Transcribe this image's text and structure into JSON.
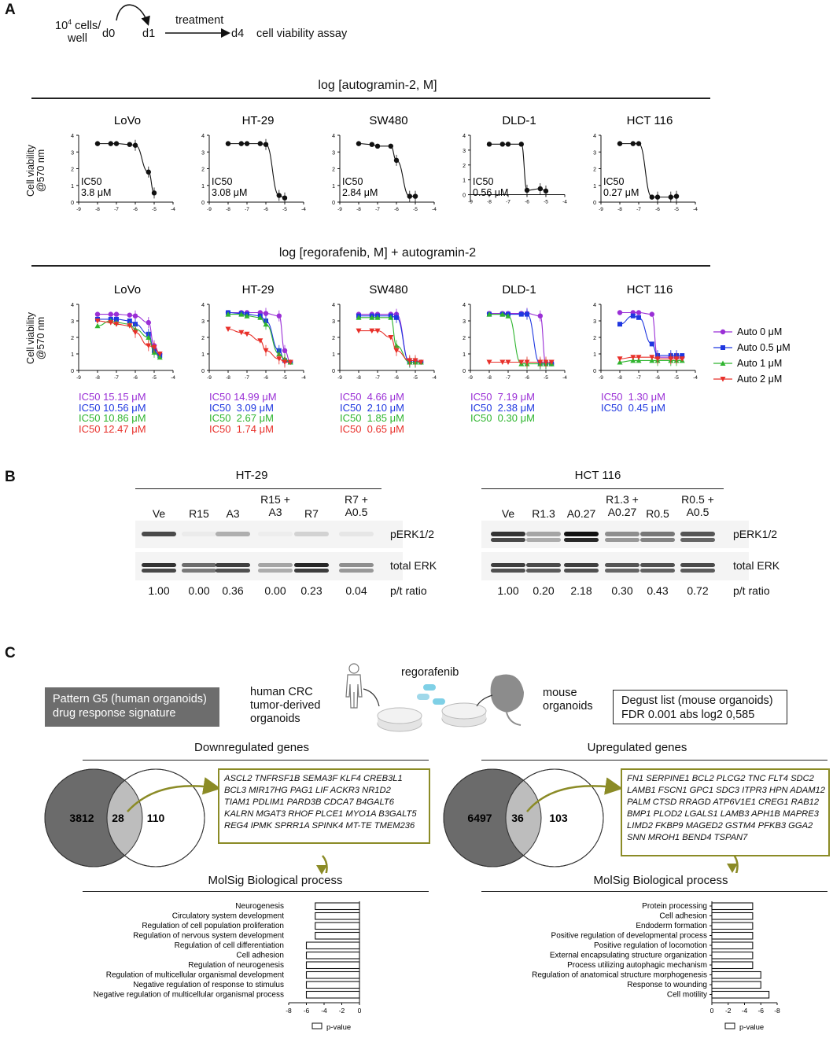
{
  "panels": {
    "a": "A",
    "b": "B",
    "c": "C"
  },
  "schematic": {
    "cells_line1": "10",
    "cells_sup": "4",
    "cells_line1b": " cells/",
    "cells_line2": "well",
    "d0": "d0",
    "d1": "d1",
    "treatment": "treatment",
    "d4": "d4",
    "assay": "cell viability assay"
  },
  "section_titles": {
    "top": "log [autogramin-2, M]",
    "bottom": "log [regorafenib, M] + autogramin-2"
  },
  "ylabel_line1": "Cell viability",
  "ylabel_line2": "@570 nm",
  "legend": [
    {
      "name": "Auto 0 μM",
      "color": "#9a2fd6",
      "marker": "circle"
    },
    {
      "name": "Auto 0.5 μM",
      "color": "#1f37e0",
      "marker": "square"
    },
    {
      "name": "Auto 1 μM",
      "color": "#2fb52f",
      "marker": "triangle-up"
    },
    {
      "name": "Auto 2 μM",
      "color": "#e8302a",
      "marker": "triangle-down"
    }
  ],
  "chart_data": [
    {
      "type": "line",
      "title": "LoVo",
      "group": "autogramin-2",
      "xlim": [
        -9,
        -4
      ],
      "ylim": [
        0,
        4
      ],
      "series": [
        {
          "x": [
            -8,
            -7.3,
            -7,
            -6.3,
            -6,
            -5.3,
            -5
          ],
          "values": [
            3.5,
            3.5,
            3.5,
            3.45,
            3.4,
            1.8,
            0.55
          ]
        }
      ],
      "ic50": [
        "IC50",
        "3.8 μM"
      ]
    },
    {
      "type": "line",
      "title": "HT-29",
      "group": "autogramin-2",
      "xlim": [
        -9,
        -4
      ],
      "ylim": [
        0,
        4
      ],
      "series": [
        {
          "x": [
            -8,
            -7.3,
            -7,
            -6.3,
            -6,
            -5.3,
            -5
          ],
          "values": [
            3.5,
            3.5,
            3.5,
            3.5,
            3.45,
            0.4,
            0.25
          ]
        }
      ],
      "ic50": [
        "IC50",
        "3.08 μM"
      ]
    },
    {
      "type": "line",
      "title": "SW480",
      "group": "autogramin-2",
      "xlim": [
        -9,
        -4
      ],
      "ylim": [
        0,
        4
      ],
      "series": [
        {
          "x": [
            -8,
            -7.3,
            -7,
            -6.3,
            -6,
            -5.3,
            -5
          ],
          "values": [
            3.5,
            3.45,
            3.35,
            3.35,
            2.5,
            0.35,
            0.35
          ]
        }
      ],
      "ic50": [
        "IC50",
        "2.84 μM"
      ]
    },
    {
      "type": "line",
      "title": "DLD-1",
      "group": "autogramin-2",
      "xlim": [
        -9,
        -4
      ],
      "ylim": [
        -0.5,
        4
      ],
      "series": [
        {
          "x": [
            -8,
            -7.3,
            -7,
            -6.3,
            -6,
            -5.3,
            -5
          ],
          "values": [
            3.4,
            3.4,
            3.4,
            3.4,
            0.3,
            0.4,
            0.25
          ]
        }
      ],
      "ic50": [
        "IC50",
        "0.56 μM"
      ]
    },
    {
      "type": "line",
      "title": "HCT 116",
      "group": "autogramin-2",
      "xlim": [
        -9,
        -4
      ],
      "ylim": [
        0,
        4
      ],
      "series": [
        {
          "x": [
            -8,
            -7.3,
            -7,
            -6.3,
            -6,
            -5.3,
            -5
          ],
          "values": [
            3.5,
            3.5,
            3.5,
            0.3,
            0.3,
            0.3,
            0.35
          ]
        }
      ],
      "ic50": [
        "IC50",
        "0.27 μM"
      ]
    },
    {
      "type": "line",
      "title": "LoVo",
      "group": "regorafenib",
      "xlim": [
        -9,
        -4
      ],
      "ylim": [
        0,
        4
      ],
      "x": [
        -8,
        -7.3,
        -7,
        -6.3,
        -6,
        -5.3,
        -5,
        -4.7
      ],
      "series": [
        {
          "name": "Auto 0 μM",
          "values": [
            3.4,
            3.4,
            3.4,
            3.35,
            3.3,
            2.9,
            1.5,
            1.0
          ]
        },
        {
          "name": "Auto 0.5 μM",
          "values": [
            3.1,
            3.1,
            3.1,
            3.0,
            2.8,
            2.2,
            1.2,
            0.9
          ]
        },
        {
          "name": "Auto 1 μM",
          "values": [
            2.7,
            3.0,
            2.9,
            2.8,
            2.5,
            2.0,
            1.1,
            0.8
          ]
        },
        {
          "name": "Auto 2 μM",
          "values": [
            3.0,
            2.9,
            2.8,
            2.7,
            2.3,
            1.5,
            1.4,
            1.0
          ]
        }
      ],
      "ic50": [
        [
          "IC50 15.15 μM",
          "#9a2fd6"
        ],
        [
          "IC50 10.56 μM",
          "#1f37e0"
        ],
        [
          "IC50 10.86 μM",
          "#2fb52f"
        ],
        [
          "IC50 12.47 μM",
          "#e8302a"
        ]
      ]
    },
    {
      "type": "line",
      "title": "HT-29",
      "group": "regorafenib",
      "xlim": [
        -9,
        -4
      ],
      "ylim": [
        0,
        4
      ],
      "x": [
        -8,
        -7.3,
        -7,
        -6.3,
        -6,
        -5.3,
        -5,
        -4.7
      ],
      "series": [
        {
          "name": "Auto 0 μM",
          "values": [
            3.5,
            3.5,
            3.5,
            3.5,
            3.45,
            3.3,
            1.2,
            0.5
          ]
        },
        {
          "name": "Auto 0.5 μM",
          "values": [
            3.5,
            3.45,
            3.4,
            3.3,
            3.0,
            1.2,
            0.6,
            0.5
          ]
        },
        {
          "name": "Auto 1 μM",
          "values": [
            3.4,
            3.4,
            3.3,
            3.2,
            2.8,
            1.0,
            0.7,
            0.5
          ]
        },
        {
          "name": "Auto 2 μM",
          "values": [
            2.5,
            2.3,
            2.2,
            1.8,
            1.2,
            0.7,
            0.5,
            0.5
          ]
        }
      ],
      "ic50": [
        [
          "IC50 14.99 μM",
          "#9a2fd6"
        ],
        [
          "IC50  3.09 μM",
          "#1f37e0"
        ],
        [
          "IC50  2.67 μM",
          "#2fb52f"
        ],
        [
          "IC50  1.74 μM",
          "#e8302a"
        ]
      ]
    },
    {
      "type": "line",
      "title": "SW480",
      "group": "regorafenib",
      "xlim": [
        -9,
        -4
      ],
      "ylim": [
        0,
        4
      ],
      "x": [
        -8,
        -7.3,
        -7,
        -6.3,
        -6,
        -5.3,
        -5,
        -4.7
      ],
      "series": [
        {
          "name": "Auto 0 μM",
          "values": [
            3.4,
            3.4,
            3.4,
            3.4,
            3.4,
            0.5,
            0.5,
            0.5
          ]
        },
        {
          "name": "Auto 0.5 μM",
          "values": [
            3.3,
            3.3,
            3.3,
            3.3,
            3.2,
            0.5,
            0.5,
            0.5
          ]
        },
        {
          "name": "Auto 1 μM",
          "values": [
            3.2,
            3.2,
            3.2,
            3.2,
            1.5,
            0.5,
            0.5,
            0.5
          ]
        },
        {
          "name": "Auto 2 μM",
          "values": [
            2.4,
            2.4,
            2.4,
            2.0,
            1.2,
            0.6,
            0.6,
            0.5
          ]
        }
      ],
      "ic50": [
        [
          "IC50  4.66 μM",
          "#9a2fd6"
        ],
        [
          "IC50  2.10 μM",
          "#1f37e0"
        ],
        [
          "IC50  1.85 μM",
          "#2fb52f"
        ],
        [
          "IC50  0.65 μM",
          "#e8302a"
        ]
      ]
    },
    {
      "type": "line",
      "title": "DLD-1",
      "group": "regorafenib",
      "xlim": [
        -9,
        -4
      ],
      "ylim": [
        0,
        4
      ],
      "x": [
        -8,
        -7.3,
        -7,
        -6.3,
        -6,
        -5.3,
        -5,
        -4.7
      ],
      "series": [
        {
          "name": "Auto 0 μM",
          "values": [
            3.45,
            3.45,
            3.45,
            3.45,
            3.45,
            3.3,
            0.4,
            0.4
          ]
        },
        {
          "name": "Auto 0.5 μM",
          "values": [
            3.4,
            3.4,
            3.4,
            3.4,
            3.4,
            0.4,
            0.4,
            0.4
          ]
        },
        {
          "name": "Auto 1 μM",
          "values": [
            3.4,
            3.4,
            3.3,
            0.4,
            0.4,
            0.4,
            0.4,
            0.4
          ]
        },
        {
          "name": "Auto 2 μM",
          "values": [
            0.5,
            0.5,
            0.5,
            0.5,
            0.5,
            0.5,
            0.5,
            0.5
          ]
        }
      ],
      "ic50": [
        [
          "IC50  7.19 μM",
          "#9a2fd6"
        ],
        [
          "IC50  2.38 μM",
          "#1f37e0"
        ],
        [
          "IC50  0.30 μM",
          "#2fb52f"
        ]
      ]
    },
    {
      "type": "line",
      "title": "HCT 116",
      "group": "regorafenib",
      "xlim": [
        -9,
        -4
      ],
      "ylim": [
        0,
        4
      ],
      "x": [
        -8,
        -7.3,
        -7,
        -6.3,
        -6,
        -5.3,
        -5,
        -4.7
      ],
      "series": [
        {
          "name": "Auto 0 μM",
          "values": [
            3.5,
            3.5,
            3.5,
            3.4,
            0.8,
            0.8,
            0.8,
            0.8
          ]
        },
        {
          "name": "Auto 0.5 μM",
          "values": [
            2.8,
            3.3,
            3.2,
            1.6,
            0.9,
            0.9,
            0.9,
            0.9
          ]
        },
        {
          "name": "Auto 1 μM",
          "values": [
            0.5,
            0.6,
            0.6,
            0.6,
            0.6,
            0.6,
            0.6,
            0.6
          ]
        },
        {
          "name": "Auto 2 μM",
          "values": [
            0.7,
            0.8,
            0.8,
            0.8,
            0.7,
            0.7,
            0.7,
            0.7
          ]
        }
      ],
      "ic50": [
        [
          "IC50  1.30 μM",
          "#9a2fd6"
        ],
        [
          "IC50  0.45 μM",
          "#1f37e0"
        ]
      ]
    },
    {
      "type": "bar",
      "orientation": "horizontal",
      "title": "MolSig Biological process (Downregulated)",
      "categories": [
        "Neurogenesis",
        "Circulatory system development",
        "Regulation of cell population proliferation",
        "Regulation of nervous system development",
        "Regulation of cell differentiation",
        "Cell adhesion",
        "Regulation of neurogenesis",
        "Regulation of multicellular organismal development",
        "Negative regulation of response to stimulus",
        "Negative regulation of multicellular organismal process"
      ],
      "values": [
        -5,
        -5,
        -5,
        -5,
        -6,
        -6,
        -6,
        -6,
        -6,
        -6
      ],
      "xlim": [
        -8,
        0
      ],
      "legend": "p-value"
    },
    {
      "type": "bar",
      "orientation": "horizontal",
      "title": "MolSig Biological process (Upregulated)",
      "categories": [
        "Protein processing",
        "Cell adhesion",
        "Endoderm formation",
        "Positive regulation of developmental process",
        "Positive regulation of locomotion",
        "External encapsulating structure organization",
        "Process utilizing autophagic mechanism",
        "Regulation of anatomical structure morphogenesis",
        "Response to wounding",
        "Cell motility"
      ],
      "values": [
        -5,
        -5,
        -5,
        -5,
        -5,
        -5,
        -5,
        -6,
        -6,
        -7
      ],
      "xlim": [
        0,
        -8
      ],
      "legend": "p-value"
    }
  ],
  "blots": {
    "left": {
      "title": "HT-29",
      "lanes": [
        "Ve",
        "R15",
        "A3",
        "R15 +\nA3",
        "R7",
        "R7 +\nA0.5"
      ],
      "ratios": [
        "1.00",
        "0.00",
        "0.36",
        "0.00",
        "0.23",
        "0.04"
      ]
    },
    "right": {
      "title": "HCT 116",
      "lanes": [
        "Ve",
        "R1.3",
        "A0.27",
        "R1.3 +\nA0.27",
        "R0.5",
        "R0.5 +\nA0.5"
      ],
      "ratios": [
        "1.00",
        "0.20",
        "2.18",
        "0.30",
        "0.43",
        "0.72"
      ]
    },
    "row_labels": [
      "pERK1/2",
      "total ERK",
      "p/t ratio"
    ]
  },
  "panel_c": {
    "grey_box": "Pattern G5 (human organoids)\ndrug response signature",
    "human_label": "human CRC\ntumor-derived\norganoids",
    "drug_label": "regorafenib",
    "mouse_label": "mouse\norganoids",
    "white_box": "Degust list (mouse organoids)\nFDR 0.001 abs log2 0,585",
    "down_title": "Downregulated genes",
    "up_title": "Upregulated genes",
    "down_venn": {
      "left": "3812",
      "mid": "28",
      "right": "110"
    },
    "up_venn": {
      "left": "6497",
      "mid": "36",
      "right": "103"
    },
    "down_genes": "ASCL2 TNFRSF1B SEMA3F KLF4 CREB3L1\nBCL3 MIR17HG PAG1 LIF ACKR3 NR1D2\nTIAM1 PDLIM1 PARD3B CDCA7 B4GALT6\nKALRN MGAT3 RHOF PLCE1 MYO1A B3GALT5\nREG4 IPMK SPRR1A SPINK4 MT-TE TMEM236",
    "up_genes": "FN1 SERPINE1 BCL2 PLCG2 TNC FLT4 SDC2\nLAMB1 FSCN1 GPC1 SDC3 ITPR3 HPN ADAM12\nPALM CTSD RRAGD ATP6V1E1 CREG1 RAB12\nBMP1 PLOD2 LGALS1 LAMB3 APH1B MAPRE3\nLIMD2 FKBP9 MAGED2 GSTM4 PFKB3 GGA2\nSNN MROH1 BEND4 TSPAN7",
    "molsig_title": "MolSig Biological process",
    "pvalue": "p-value"
  }
}
